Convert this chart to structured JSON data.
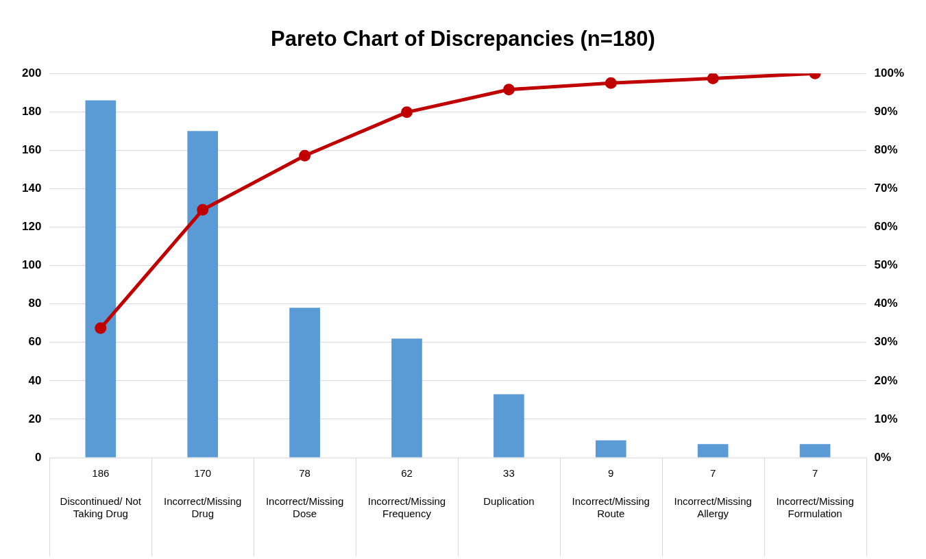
{
  "chart_data": {
    "type": "bar",
    "title": "Pareto Chart of Discrepancies (n=180)",
    "categories": [
      "Discontinued/ Not Taking Drug",
      "Incorrect/Missing Drug",
      "Incorrect/Missing Dose",
      "Incorrect/Missing Frequency",
      "Duplication",
      "Incorrect/Missing Route",
      "Incorrect/Missing Allergy",
      "Incorrect/Missing Formulation"
    ],
    "series": [
      {
        "color": "#5b9bd5",
        "values": [
          186,
          170,
          78,
          62,
          33,
          9,
          7,
          7
        ],
        "value_labels": [
          "186",
          "170",
          "78",
          "62",
          "33",
          "9",
          "7",
          "7"
        ]
      },
      {
        "type": "line",
        "axis": "y2",
        "color": "#c00000",
        "values": [
          33.7,
          64.5,
          78.6,
          89.9,
          95.8,
          97.5,
          98.7,
          100
        ]
      }
    ],
    "ylim": [
      0,
      200
    ],
    "yticks": [
      0,
      20,
      40,
      60,
      80,
      100,
      120,
      140,
      160,
      180,
      200
    ],
    "y2lim": [
      0,
      100
    ],
    "y2ticks": [
      {
        "value": 0,
        "label": "0%"
      },
      {
        "value": 10,
        "label": "10%"
      },
      {
        "value": 20,
        "label": "20%"
      },
      {
        "value": 30,
        "label": "30%"
      },
      {
        "value": 40,
        "label": "40%"
      },
      {
        "value": 50,
        "label": "50%"
      },
      {
        "value": 60,
        "label": "60%"
      },
      {
        "value": 70,
        "label": "70%"
      },
      {
        "value": 80,
        "label": "80%"
      },
      {
        "value": 90,
        "label": "90%"
      },
      {
        "value": 100,
        "label": "100%"
      }
    ],
    "grid": "y",
    "legend": false,
    "marker": "circle",
    "line_style": "solid"
  }
}
